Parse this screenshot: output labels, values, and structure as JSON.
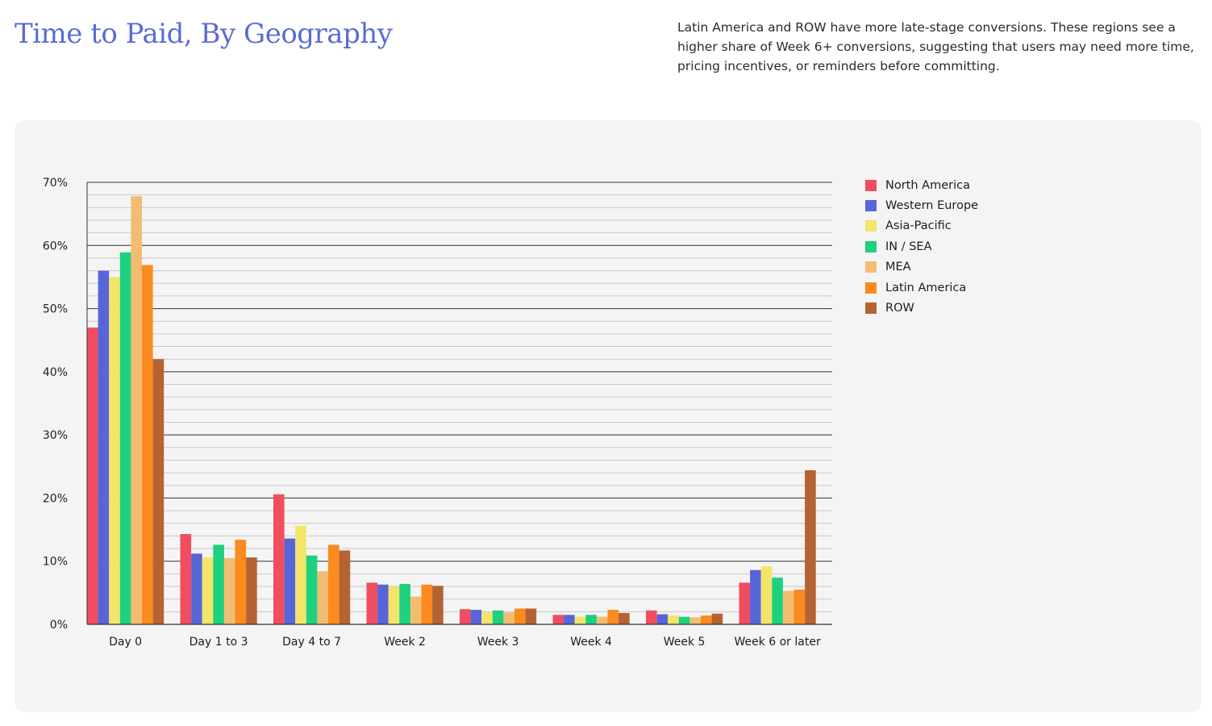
{
  "header": {
    "title": "Time to Paid, By Geography",
    "description": "Latin America and ROW have more late-stage conversions. These regions see a higher share of Week 6+ conversions, suggesting that users may need more time, pricing incentives, or reminders before committing."
  },
  "chart_data": {
    "type": "bar",
    "title": "",
    "xlabel": "",
    "ylabel": "",
    "ylim": [
      0,
      70
    ],
    "yticks": [
      "0%",
      "10%",
      "20%",
      "30%",
      "40%",
      "50%",
      "60%",
      "70%"
    ],
    "grid": "horizontal, major every 10%, minor every 2%",
    "legend_position": "right",
    "categories": [
      "Day 0",
      "Day 1 to 3",
      "Day 4 to 7",
      "Week 2",
      "Week 3",
      "Week 4",
      "Week 5",
      "Week 6 or later"
    ],
    "series": [
      {
        "name": "North America",
        "color": "#f04e5e",
        "values": [
          47.0,
          14.3,
          20.6,
          6.6,
          2.4,
          1.5,
          2.2,
          6.6
        ]
      },
      {
        "name": "Western Europe",
        "color": "#5865d9",
        "values": [
          56.0,
          11.2,
          13.6,
          6.3,
          2.3,
          1.5,
          1.6,
          8.6
        ]
      },
      {
        "name": "Asia-Pacific",
        "color": "#f2e56a",
        "values": [
          55.0,
          10.6,
          15.6,
          6.0,
          1.9,
          1.2,
          1.4,
          9.2
        ]
      },
      {
        "name": "IN / SEA",
        "color": "#1dd17e",
        "values": [
          58.9,
          12.6,
          10.9,
          6.4,
          2.2,
          1.5,
          1.2,
          7.4
        ]
      },
      {
        "name": "MEA",
        "color": "#f2bd72",
        "values": [
          67.8,
          10.5,
          8.4,
          4.4,
          1.9,
          1.2,
          1.1,
          5.3
        ]
      },
      {
        "name": "Latin America",
        "color": "#fb8a1f",
        "values": [
          56.9,
          13.4,
          12.6,
          6.3,
          2.5,
          2.3,
          1.4,
          5.5
        ]
      },
      {
        "name": "ROW",
        "color": "#b56332",
        "values": [
          42.0,
          10.6,
          11.7,
          6.1,
          2.5,
          1.8,
          1.7,
          24.4
        ]
      }
    ]
  }
}
